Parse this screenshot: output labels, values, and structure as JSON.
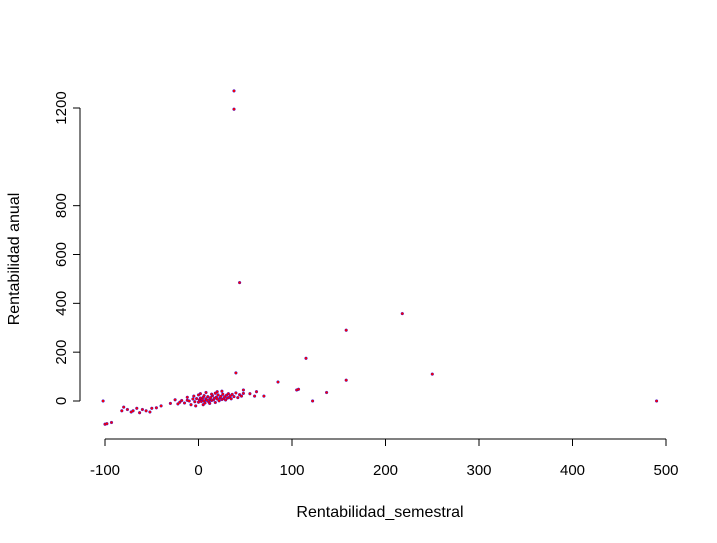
{
  "chart_data": {
    "type": "scatter",
    "title": "",
    "xlabel": "Rentabilidad_semestral",
    "ylabel": "Rentabilidad anual",
    "xlim": [
      -100,
      500
    ],
    "ylim": [
      -100,
      1250
    ],
    "x_ticks": [
      -100,
      0,
      100,
      200,
      300,
      400,
      500
    ],
    "y_ticks": [
      0,
      200,
      400,
      600,
      800,
      1200
    ],
    "x_tick_labels": [
      "-100",
      "0",
      "100",
      "200",
      "300",
      "400",
      "500"
    ],
    "y_tick_labels": [
      "0",
      "200",
      "400",
      "600",
      "800",
      "1200"
    ],
    "grid": false,
    "legend": "none",
    "colors": {
      "point_fill": "#ff0000",
      "point_edge": "#0000ff"
    },
    "points": [
      [
        -100,
        -95
      ],
      [
        -98,
        -93
      ],
      [
        -93,
        -88
      ],
      [
        -102,
        0
      ],
      [
        -82,
        -40
      ],
      [
        -80,
        -25
      ],
      [
        -76,
        -35
      ],
      [
        -72,
        -45
      ],
      [
        -70,
        -40
      ],
      [
        -66,
        -30
      ],
      [
        -63,
        -48
      ],
      [
        -60,
        -35
      ],
      [
        -56,
        -40
      ],
      [
        -52,
        -45
      ],
      [
        -50,
        -30
      ],
      [
        -45,
        -28
      ],
      [
        -40,
        -20
      ],
      [
        -30,
        -10
      ],
      [
        -25,
        5
      ],
      [
        -22,
        -12
      ],
      [
        -20,
        -5
      ],
      [
        -18,
        2
      ],
      [
        -15,
        -8
      ],
      [
        -12,
        3
      ],
      [
        -10,
        0
      ],
      [
        -8,
        -15
      ],
      [
        -6,
        8
      ],
      [
        -4,
        -3
      ],
      [
        -2,
        10
      ],
      [
        0,
        -5
      ],
      [
        1,
        4
      ],
      [
        2,
        12
      ],
      [
        3,
        -2
      ],
      [
        4,
        6
      ],
      [
        5,
        15
      ],
      [
        6,
        0
      ],
      [
        7,
        -8
      ],
      [
        8,
        9
      ],
      [
        9,
        3
      ],
      [
        10,
        18
      ],
      [
        11,
        -4
      ],
      [
        12,
        7
      ],
      [
        13,
        14
      ],
      [
        14,
        2
      ],
      [
        15,
        22
      ],
      [
        16,
        5
      ],
      [
        17,
        11
      ],
      [
        18,
        -6
      ],
      [
        19,
        16
      ],
      [
        20,
        8
      ],
      [
        21,
        25
      ],
      [
        22,
        1
      ],
      [
        23,
        13
      ],
      [
        24,
        19
      ],
      [
        25,
        6
      ],
      [
        26,
        28
      ],
      [
        27,
        10
      ],
      [
        28,
        17
      ],
      [
        29,
        4
      ],
      [
        30,
        24
      ],
      [
        31,
        12
      ],
      [
        32,
        30
      ],
      [
        33,
        15
      ],
      [
        34,
        21
      ],
      [
        35,
        9
      ],
      [
        36,
        27
      ],
      [
        38,
        18
      ],
      [
        40,
        33
      ],
      [
        42,
        14
      ],
      [
        44,
        26
      ],
      [
        46,
        20
      ],
      [
        48,
        31
      ],
      [
        -5,
        20
      ],
      [
        2,
        30
      ],
      [
        8,
        35
      ],
      [
        14,
        28
      ],
      [
        20,
        38
      ],
      [
        -12,
        15
      ],
      [
        -3,
        -20
      ],
      [
        5,
        -15
      ],
      [
        12,
        -10
      ],
      [
        18,
        32
      ],
      [
        25,
        40
      ],
      [
        0,
        25
      ],
      [
        6,
        22
      ],
      [
        38,
        1270
      ],
      [
        38,
        1195
      ],
      [
        44,
        485
      ],
      [
        40,
        115
      ],
      [
        48,
        45
      ],
      [
        55,
        30
      ],
      [
        60,
        20
      ],
      [
        62,
        38
      ],
      [
        70,
        20
      ],
      [
        85,
        78
      ],
      [
        105,
        45
      ],
      [
        107,
        48
      ],
      [
        115,
        175
      ],
      [
        122,
        0
      ],
      [
        137,
        35
      ],
      [
        158,
        85
      ],
      [
        158,
        290
      ],
      [
        218,
        358
      ],
      [
        250,
        110
      ],
      [
        490,
        0
      ]
    ]
  }
}
